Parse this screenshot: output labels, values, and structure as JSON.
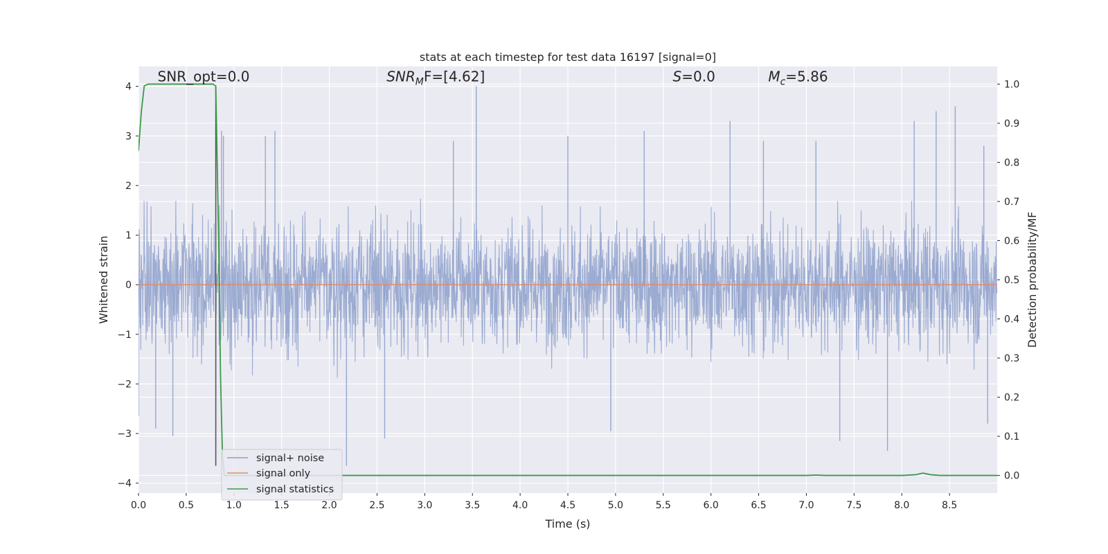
{
  "chart_data": {
    "type": "line",
    "title": "stats at each timestep for test data 16197 [signal=0]",
    "xlabel": "Time (s)",
    "ylabel": "Whitened strain",
    "ylabel_right": "Detection probability/MF",
    "xlim": [
      0.0,
      9.0
    ],
    "ylim": [
      -4.2,
      4.4
    ],
    "ylim_right": [
      -0.045,
      1.045
    ],
    "x_ticks": [
      0.0,
      0.5,
      1.0,
      1.5,
      2.0,
      2.5,
      3.0,
      3.5,
      4.0,
      4.5,
      5.0,
      5.5,
      6.0,
      6.5,
      7.0,
      7.5,
      8.0,
      8.5
    ],
    "x_tick_labels": [
      "0.0",
      "0.5",
      "1.0",
      "1.5",
      "2.0",
      "2.5",
      "3.0",
      "3.5",
      "4.0",
      "4.5",
      "5.0",
      "5.5",
      "6.0",
      "6.5",
      "7.0",
      "7.5",
      "8.0",
      "8.5"
    ],
    "y_ticks": [
      -4,
      -3,
      -2,
      -1,
      0,
      1,
      2,
      3,
      4
    ],
    "y_tick_labels": [
      "−4",
      "−3",
      "−2",
      "−1",
      "0",
      "1",
      "2",
      "3",
      "4"
    ],
    "y_right_ticks": [
      0.0,
      0.1,
      0.2,
      0.3,
      0.4,
      0.5,
      0.6,
      0.7,
      0.8,
      0.9,
      1.0
    ],
    "y_right_tick_labels": [
      "0.0",
      "0.1",
      "0.2",
      "0.3",
      "0.4",
      "0.5",
      "0.6",
      "0.7",
      "0.8",
      "0.9",
      "1.0"
    ],
    "grid": true,
    "legend_position": "bottom-left",
    "annotations": [
      {
        "text": "SNR_opt=0.0",
        "x": 0.2,
        "y": 4.1
      },
      {
        "text": "SNR_MF=[4.62]",
        "x": 2.6,
        "y": 4.1,
        "base": "SNR",
        "sub": "M",
        "rest": "F=[4.62]"
      },
      {
        "text": "S=0.0",
        "x": 5.6,
        "y": 4.1,
        "base": "S",
        "rest": "=0.0"
      },
      {
        "text": "M_c=5.86",
        "x": 6.6,
        "y": 4.1,
        "base": "M",
        "sub": "c",
        "rest": "=5.86"
      }
    ],
    "vline": {
      "x": 0.81,
      "y_range": [
        -3.65,
        4.0
      ],
      "color": "#555555"
    },
    "series": [
      {
        "name": "signal+ noise",
        "axis": "left",
        "color": "#8da0cb",
        "kind": "whitened-noise",
        "envelope_typical": 1.6,
        "peaks": [
          {
            "x": 3.54,
            "y": 4.0
          },
          {
            "x": 0.87,
            "y": 3.1
          },
          {
            "x": 0.89,
            "y": 3.0
          },
          {
            "x": 1.33,
            "y": 3.0
          },
          {
            "x": 1.43,
            "y": 3.1
          },
          {
            "x": 2.18,
            "y": -3.65
          },
          {
            "x": 2.58,
            "y": -3.1
          },
          {
            "x": 0.36,
            "y": -3.05
          },
          {
            "x": 0.18,
            "y": -2.9
          },
          {
            "x": 5.3,
            "y": 3.1
          },
          {
            "x": 6.2,
            "y": 3.3
          },
          {
            "x": 7.35,
            "y": -3.15
          },
          {
            "x": 7.85,
            "y": -3.35
          },
          {
            "x": 8.13,
            "y": 3.3
          },
          {
            "x": 8.36,
            "y": 3.5
          },
          {
            "x": 8.56,
            "y": 3.6
          },
          {
            "x": 8.86,
            "y": 2.8
          },
          {
            "x": 8.9,
            "y": -2.8
          },
          {
            "x": 4.95,
            "y": -2.95
          },
          {
            "x": 0.0,
            "y": -2.65
          },
          {
            "x": 7.1,
            "y": 2.9
          },
          {
            "x": 6.55,
            "y": 2.9
          },
          {
            "x": 4.5,
            "y": 3.0
          },
          {
            "x": 3.3,
            "y": 2.9
          }
        ]
      },
      {
        "name": "signal only",
        "axis": "left",
        "color": "#e08b6b",
        "x": [
          0.0,
          9.0
        ],
        "y": [
          0.0,
          0.0
        ]
      },
      {
        "name": "signal statistics",
        "axis": "right",
        "color": "#3a9b48",
        "x": [
          0.0,
          0.03,
          0.06,
          0.1,
          0.2,
          0.4,
          0.6,
          0.78,
          0.81,
          0.84,
          0.86,
          0.88,
          0.9,
          1.0,
          2.0,
          3.0,
          4.0,
          5.0,
          6.0,
          7.0,
          7.1,
          7.2,
          8.0,
          8.15,
          8.22,
          8.26,
          8.3,
          8.4,
          8.5,
          9.0
        ],
        "y": [
          0.83,
          0.93,
          0.995,
          1.0,
          1.0,
          1.0,
          1.0,
          1.0,
          0.995,
          0.6,
          0.25,
          0.05,
          0.0,
          0.0,
          0.0,
          0.0,
          0.0,
          0.0,
          0.0,
          0.0,
          0.001,
          0.0,
          0.0,
          0.002,
          0.006,
          0.004,
          0.002,
          0.0,
          0.0,
          0.0
        ]
      }
    ]
  }
}
